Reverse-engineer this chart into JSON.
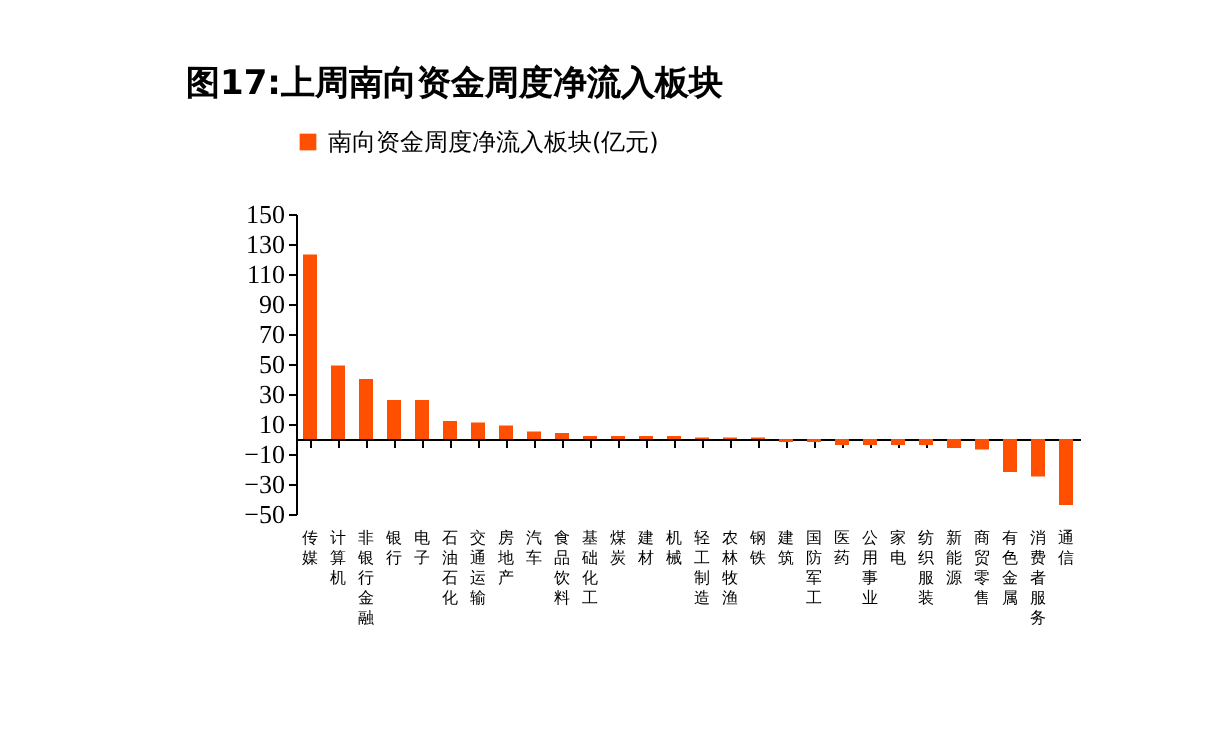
{
  "chart_data": {
    "type": "bar",
    "title": "图17:上周南向资金周度净流入板块",
    "categories": [
      "传媒",
      "计算机",
      "非银行金融",
      "银行",
      "电子",
      "石油石化",
      "交通运输",
      "房地产",
      "汽车",
      "食品饮料",
      "基础化工",
      "煤炭",
      "建材",
      "机械",
      "轻工制造",
      "农林牧渔",
      "钢铁",
      "建筑",
      "国防军工",
      "医药",
      "公用事业",
      "家电",
      "纺织服装",
      "新能源",
      "商贸零售",
      "有色金属",
      "消费者服务",
      "通信"
    ],
    "series": [
      {
        "name": "南向资金周度净流入板块(亿元)",
        "color": "#fe5000",
        "values": [
          123,
          49,
          40,
          26,
          26,
          12,
          11,
          9,
          5,
          4,
          2,
          2,
          2,
          2,
          1,
          1,
          1,
          -2,
          -2,
          -4,
          -4,
          -4,
          -4,
          -6,
          -7,
          -22,
          -25,
          -44
        ]
      }
    ],
    "ylim": [
      -50,
      150
    ],
    "yticks": [
      150,
      130,
      110,
      90,
      70,
      50,
      30,
      10,
      -10,
      -30,
      -50
    ],
    "grid": false,
    "legend": "top"
  }
}
